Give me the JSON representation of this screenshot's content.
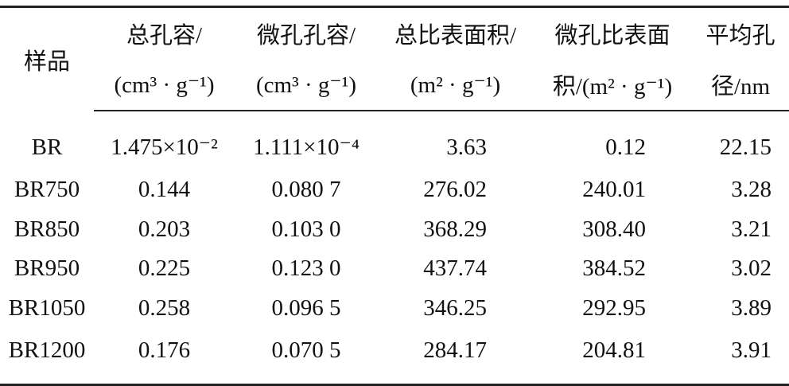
{
  "table": {
    "header": [
      [
        "样品"
      ],
      [
        "总孔容/",
        "(cm³ · g⁻¹)"
      ],
      [
        "微孔孔容/",
        "(cm³ · g⁻¹)"
      ],
      [
        "总比表面积/",
        "(m² · g⁻¹)"
      ],
      [
        "微孔比表面",
        "积/(m² · g⁻¹)"
      ],
      [
        "平均孔",
        "径/nm"
      ]
    ],
    "rows": [
      [
        "BR",
        "1.475×10⁻²",
        "1.111×10⁻⁴",
        "3.63",
        "0.12",
        "22.15"
      ],
      [
        "BR750",
        "0.144",
        "0.080 7",
        "276.02",
        "240.01",
        "3.28"
      ],
      [
        "BR850",
        "0.203",
        "0.103 0",
        "368.29",
        "308.40",
        "3.21"
      ],
      [
        "BR950",
        "0.225",
        "0.123 0",
        "437.74",
        "384.52",
        "3.02"
      ],
      [
        "BR1050",
        "0.258",
        "0.096 5",
        "346.25",
        "292.95",
        "3.89"
      ],
      [
        "BR1200",
        "0.176",
        "0.070 5",
        "284.17",
        "204.81",
        "3.91"
      ]
    ]
  }
}
